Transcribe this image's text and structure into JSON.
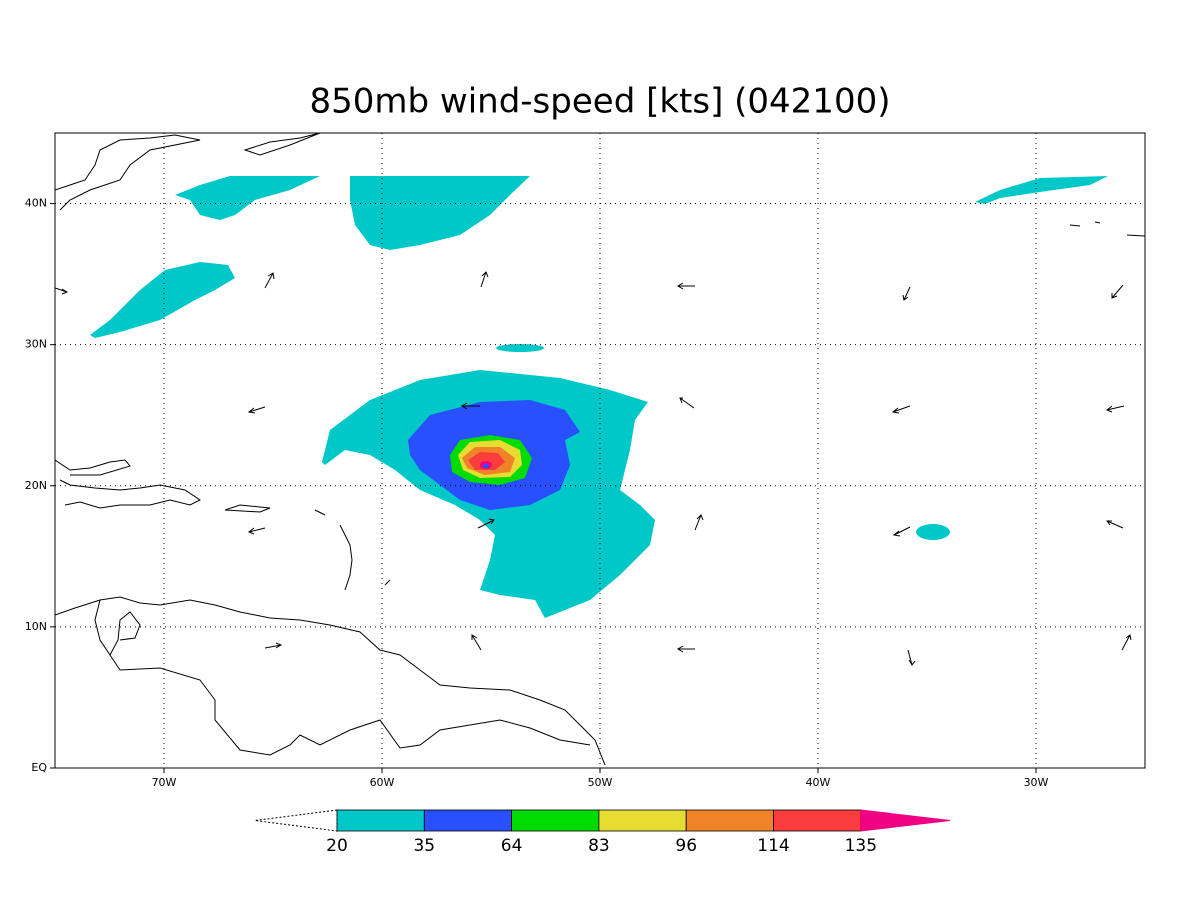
{
  "title": "850mb wind-speed [kts] (042100)",
  "map": {
    "xlim": [
      -75,
      -25
    ],
    "ylim": [
      0,
      45
    ],
    "xticks": [
      {
        "value": -70,
        "label": "70W"
      },
      {
        "value": -60,
        "label": "60W"
      },
      {
        "value": -50,
        "label": "50W"
      },
      {
        "value": -40,
        "label": "40W"
      },
      {
        "value": -30,
        "label": "30W"
      }
    ],
    "yticks": [
      {
        "value": 0,
        "label": "EQ"
      },
      {
        "value": 10,
        "label": "10N"
      },
      {
        "value": 20,
        "label": "20N"
      },
      {
        "value": 30,
        "label": "30N"
      },
      {
        "value": 40,
        "label": "40N"
      }
    ],
    "grid": true
  },
  "colorbar": {
    "levels": [
      20,
      35,
      64,
      83,
      96,
      114,
      135
    ],
    "colors": [
      "#00c8c8",
      "#2850ff",
      "#00dc00",
      "#e6dc32",
      "#f08228",
      "#fa3c3c",
      "#f00082"
    ]
  }
}
